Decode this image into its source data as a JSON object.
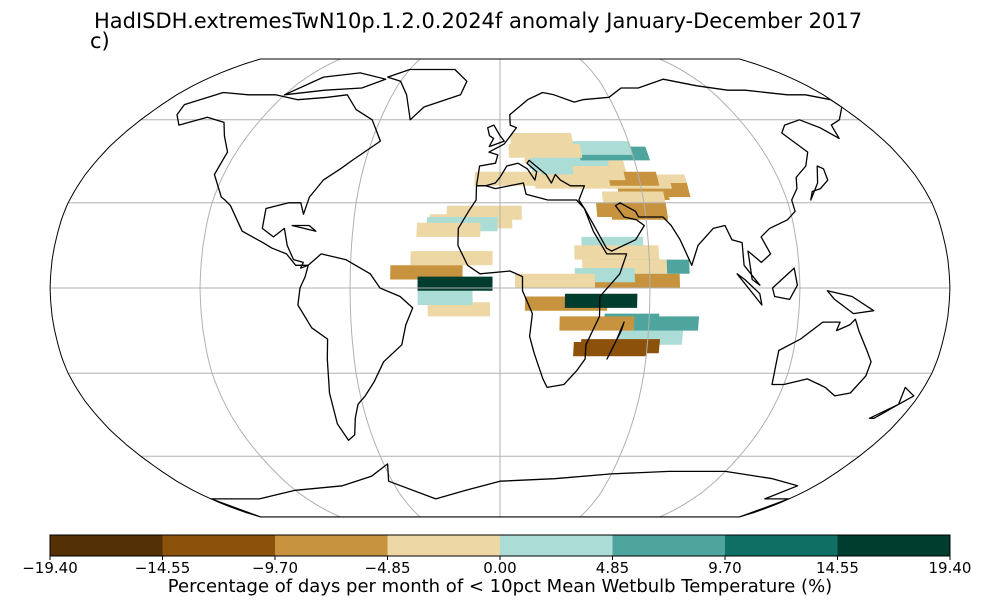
{
  "title": "HadISDH.extremesTwN10p.1.2.0.2024f anomaly January-December 2017",
  "panel_label": "c)",
  "colorbar": {
    "label": "Percentage of days per month of < 10pct Mean Wetbulb Temperature (%)",
    "ticks": [
      "−19.40",
      "−14.55",
      "−9.70",
      "−4.85",
      "0.00",
      "4.85",
      "9.70",
      "14.55",
      "19.40"
    ],
    "colors": [
      "#543005",
      "#8c510a",
      "#c8933f",
      "#ecd7a5",
      "#abdcd6",
      "#4ea59d",
      "#0e6f64",
      "#003d2e"
    ]
  },
  "map": {
    "projection": "Robinson",
    "colors": {
      "land_outline": "#000000",
      "grid": "#b0b0b0",
      "ocean": "#ffffff"
    },
    "cells": [
      [
        "#ecd7a5",
        35,
        57,
        23
      ],
      [
        "#c8933f",
        32,
        58,
        22
      ],
      [
        "#ecd7a5",
        35,
        52,
        21
      ],
      [
        "#c8933f",
        31,
        50,
        21
      ],
      [
        "#ecd7a5",
        35,
        46,
        25
      ],
      [
        "#c8933f",
        24,
        46,
        23
      ],
      [
        "#ecd7a5",
        40,
        31,
        24
      ],
      [
        "#ecd7a5",
        45,
        22,
        27
      ],
      [
        "#abdcd6",
        40,
        18,
        27
      ],
      [
        "#abdcd6",
        38,
        14,
        31
      ],
      [
        "#ecd7a5",
        44,
        11,
        24
      ],
      [
        "#abdcd6",
        42,
        13,
        35
      ],
      [
        "#c8933f",
        36,
        43,
        25
      ],
      [
        "#ecd7a5",
        38,
        32,
        22
      ],
      [
        "#ecd7a5",
        29,
        43,
        26
      ],
      [
        "#4ea59d",
        45,
        36,
        31
      ],
      [
        "#abdcd6",
        47,
        28,
        32
      ],
      [
        "#abdcd6",
        -20,
        48,
        26
      ],
      [
        "#4ea59d",
        -15,
        54,
        26
      ],
      [
        "#4ea59d",
        -14,
        42,
        22
      ],
      [
        "#abdcd6",
        10,
        36,
        24
      ],
      [
        "#c8933f",
        0,
        38,
        34
      ],
      [
        "#4ea59d",
        5,
        40,
        36
      ],
      [
        "#ecd7a5",
        5,
        33,
        34
      ],
      [
        "#abdcd6",
        13,
        33,
        25
      ],
      [
        "#c8933f",
        25,
        40,
        29
      ],
      [
        "#ecd7a5",
        10,
        30,
        34
      ],
      [
        "#abdcd6",
        2,
        30,
        24
      ],
      [
        "#c8933f",
        -8,
        10,
        33
      ],
      [
        "#ecd7a5",
        0,
        6,
        32
      ],
      [
        "#ecd7a5",
        35,
        15,
        32
      ],
      [
        "#ecd7a5",
        46,
        4,
        33
      ],
      [
        "#ecd7a5",
        50,
        5,
        29
      ],
      [
        "#ecd7a5",
        36,
        -11,
        29
      ],
      [
        "#ecd7a5",
        24,
        -22,
        31
      ],
      [
        "#ecd7a5",
        21,
        -29,
        34
      ],
      [
        "#abdcd6",
        20,
        -30,
        29
      ],
      [
        "#ecd7a5",
        18,
        -34,
        26
      ],
      [
        "#ecd7a5",
        8,
        -36,
        33
      ],
      [
        "#c8933f",
        3,
        -44,
        29
      ],
      [
        "#ecd7a5",
        -10,
        -29,
        25
      ],
      [
        "#abdcd6",
        -6,
        -33,
        22
      ],
      [
        "#003d2e",
        -1,
        -33,
        30
      ],
      [
        "#c8933f",
        -15,
        24,
        30
      ],
      [
        "#003d2e",
        -7,
        26,
        29
      ],
      [
        "#8c510a",
        -24,
        30,
        30
      ],
      [
        "#8c510a",
        -23,
        33,
        32
      ]
    ]
  }
}
